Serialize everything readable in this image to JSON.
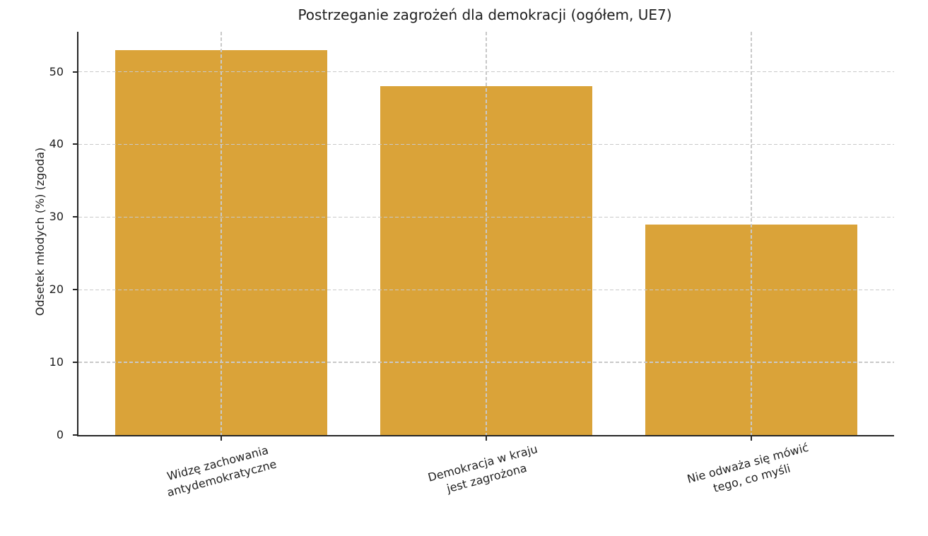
{
  "chart_data": {
    "type": "bar",
    "title": "Postrzeganie zagrożeń dla demokracji (ogółem, UE7)",
    "ylabel": "Odsetek młodych (%) (zgoda)",
    "xlabel": "",
    "categories": [
      "Widzę zachowania\nantydemokratyczne",
      "Demokracja w kraju\njest zagrożona",
      "Nie odważa się mówić\ntego, co myśli"
    ],
    "values": [
      53,
      48,
      29
    ],
    "yticks": [
      0,
      10,
      20,
      30,
      40,
      50
    ],
    "ylim": [
      0,
      55.5
    ],
    "bar_color": "#DAA339",
    "grid": "both, dashed, drawn above bars",
    "gridline_color": "#c9c9c9",
    "x_tick_label_rotation_deg": 15,
    "legend": "none"
  }
}
